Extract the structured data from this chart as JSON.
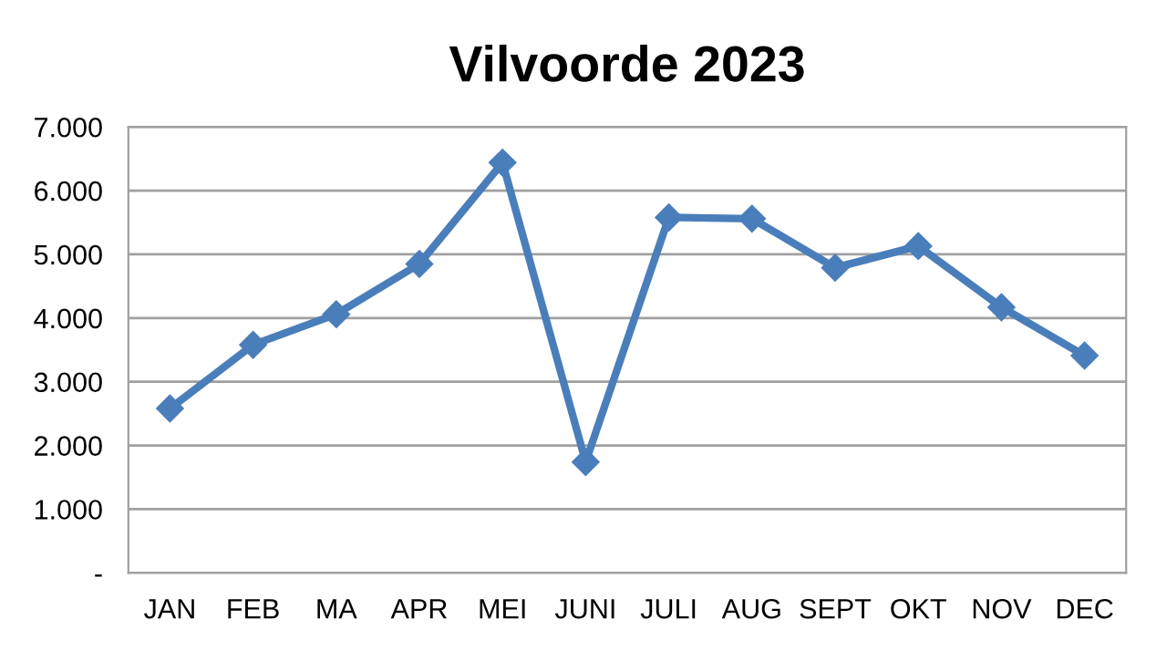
{
  "chart_data": {
    "type": "line",
    "title": "Vilvoorde 2023",
    "categories": [
      "JAN",
      "FEB",
      "MA",
      "APR",
      "MEI",
      "JUNI",
      "JULI",
      "AUG",
      "SEPT",
      "OKT",
      "NOV",
      "DEC"
    ],
    "series": [
      {
        "color": "#4a7ebb",
        "values": [
          2580,
          3580,
          4060,
          4850,
          6440,
          1740,
          5580,
          5560,
          4790,
          5130,
          4170,
          3410
        ]
      }
    ],
    "ylim": [
      0,
      7000
    ],
    "yticks": [
      {
        "value": 0,
        "label": "-"
      },
      {
        "value": 1000,
        "label": "1.000"
      },
      {
        "value": 2000,
        "label": "2.000"
      },
      {
        "value": 3000,
        "label": "3.000"
      },
      {
        "value": 4000,
        "label": "4.000"
      },
      {
        "value": 5000,
        "label": "5.000"
      },
      {
        "value": 6000,
        "label": "6.000"
      },
      {
        "value": 7000,
        "label": "7.000"
      }
    ],
    "grid": "y",
    "marker": "diamond",
    "line_style": "solid",
    "legend": false
  }
}
